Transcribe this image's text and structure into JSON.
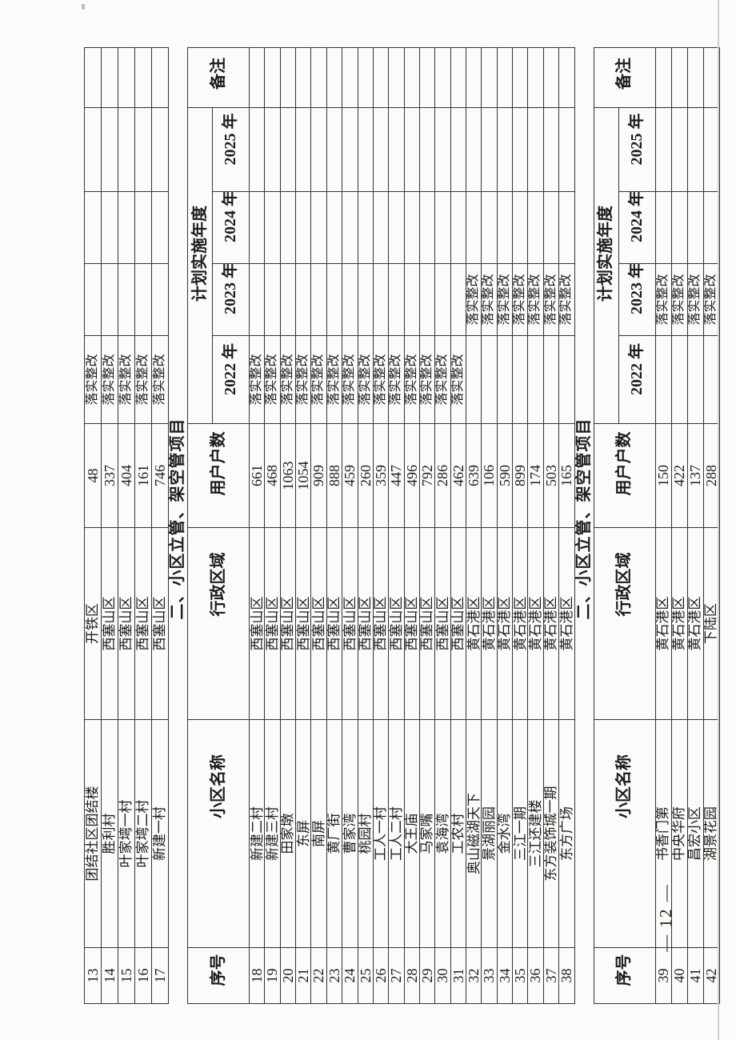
{
  "page": {
    "number_label": "— 12 —"
  },
  "colors": {
    "paper": "#fbfbf9",
    "ink": "#1c1c1c",
    "grid_line": "#34332f"
  },
  "status_label": "落实整改",
  "table_header": {
    "no": "序号",
    "name": "小区名称",
    "district": "行政区域",
    "households": "用户户数",
    "plan_years": "计划实施年度",
    "y2022": "2022 年",
    "y2023": "2023 年",
    "y2024": "2024 年",
    "y2025": "2025 年",
    "remark": "备注"
  },
  "continuation_rows": [
    {
      "no": "13",
      "name": "团结社区团结楼",
      "district": "开铁区",
      "households": "48",
      "y2022": "落实整改"
    },
    {
      "no": "14",
      "name": "胜利村",
      "district": "西塞山区",
      "households": "337",
      "y2022": "落实整改"
    },
    {
      "no": "15",
      "name": "叶家塆一村",
      "district": "西塞山区",
      "households": "404",
      "y2022": "落实整改"
    },
    {
      "no": "16",
      "name": "叶家塆二村",
      "district": "西塞山区",
      "households": "161",
      "y2022": "落实整改"
    },
    {
      "no": "17",
      "name": "新建一村",
      "district": "西塞山区",
      "households": "746",
      "y2022": "落实整改"
    }
  ],
  "section_riser": {
    "title": "二、小区立管、架空管项目",
    "rows": [
      {
        "no": "18",
        "name": "新建二村",
        "district": "西塞山区",
        "households": "661",
        "y2022": "落实整改"
      },
      {
        "no": "19",
        "name": "新建三村",
        "district": "西塞山区",
        "households": "468",
        "y2022": "落实整改"
      },
      {
        "no": "20",
        "name": "田家墩",
        "district": "西塞山区",
        "households": "1063",
        "y2022": "落实整改"
      },
      {
        "no": "21",
        "name": "东屏",
        "district": "西塞山区",
        "households": "1054",
        "y2022": "落实整改"
      },
      {
        "no": "22",
        "name": "南屏",
        "district": "西塞山区",
        "households": "909",
        "y2022": "落实整改"
      },
      {
        "no": "23",
        "name": "黄厂街",
        "district": "西塞山区",
        "households": "888",
        "y2022": "落实整改"
      },
      {
        "no": "24",
        "name": "曹家湾",
        "district": "西塞山区",
        "households": "459",
        "y2022": "落实整改"
      },
      {
        "no": "25",
        "name": "桃园村",
        "district": "西塞山区",
        "households": "260",
        "y2022": "落实整改"
      },
      {
        "no": "26",
        "name": "工人一村",
        "district": "西塞山区",
        "households": "359",
        "y2022": "落实整改"
      },
      {
        "no": "27",
        "name": "工人二村",
        "district": "西塞山区",
        "households": "447",
        "y2022": "落实整改"
      },
      {
        "no": "28",
        "name": "大王庙",
        "district": "西塞山区",
        "households": "496",
        "y2022": "落实整改"
      },
      {
        "no": "29",
        "name": "马家嘴",
        "district": "西塞山区",
        "households": "792",
        "y2022": "落实整改"
      },
      {
        "no": "30",
        "name": "袁海湾",
        "district": "西塞山区",
        "households": "286",
        "y2022": "落实整改"
      },
      {
        "no": "31",
        "name": "工农村",
        "district": "西塞山区",
        "households": "462",
        "y2022": "落实整改"
      },
      {
        "no": "32",
        "name": "奥山磁湖天下",
        "district": "黄石港区",
        "households": "639",
        "y2023": "落实整改"
      },
      {
        "no": "33",
        "name": "景湖丽园",
        "district": "黄石港区",
        "households": "106",
        "y2023": "落实整改"
      },
      {
        "no": "34",
        "name": "金水湾",
        "district": "黄石港区",
        "households": "590",
        "y2023": "落实整改"
      },
      {
        "no": "35",
        "name": "三江一期",
        "district": "黄石港区",
        "households": "899",
        "y2023": "落实整改"
      },
      {
        "no": "36",
        "name": "三江还建楼",
        "district": "黄石港区",
        "households": "174",
        "y2023": "落实整改"
      },
      {
        "no": "37",
        "name": "东方装饰城一期",
        "district": "黄石港区",
        "households": "503",
        "y2023": "落实整改"
      },
      {
        "no": "38",
        "name": "东方广场",
        "district": "黄石港区",
        "households": "165",
        "y2023": "落实整改"
      }
    ]
  },
  "section_riser_2": {
    "title": "二、小区立管、架空管项目",
    "rows": [
      {
        "no": "39",
        "name": "书香门第",
        "district": "黄石港区",
        "households": "150",
        "y2023": "落实整改"
      },
      {
        "no": "40",
        "name": "中央华府",
        "district": "黄石港区",
        "households": "422",
        "y2023": "落实整改"
      },
      {
        "no": "41",
        "name": "昌宏小区",
        "district": "黄石港区",
        "households": "137",
        "y2023": "落实整改"
      },
      {
        "no": "42",
        "name": "湖景花园",
        "district": "下陆区",
        "households": "288",
        "y2023": "落实整改"
      }
    ]
  }
}
